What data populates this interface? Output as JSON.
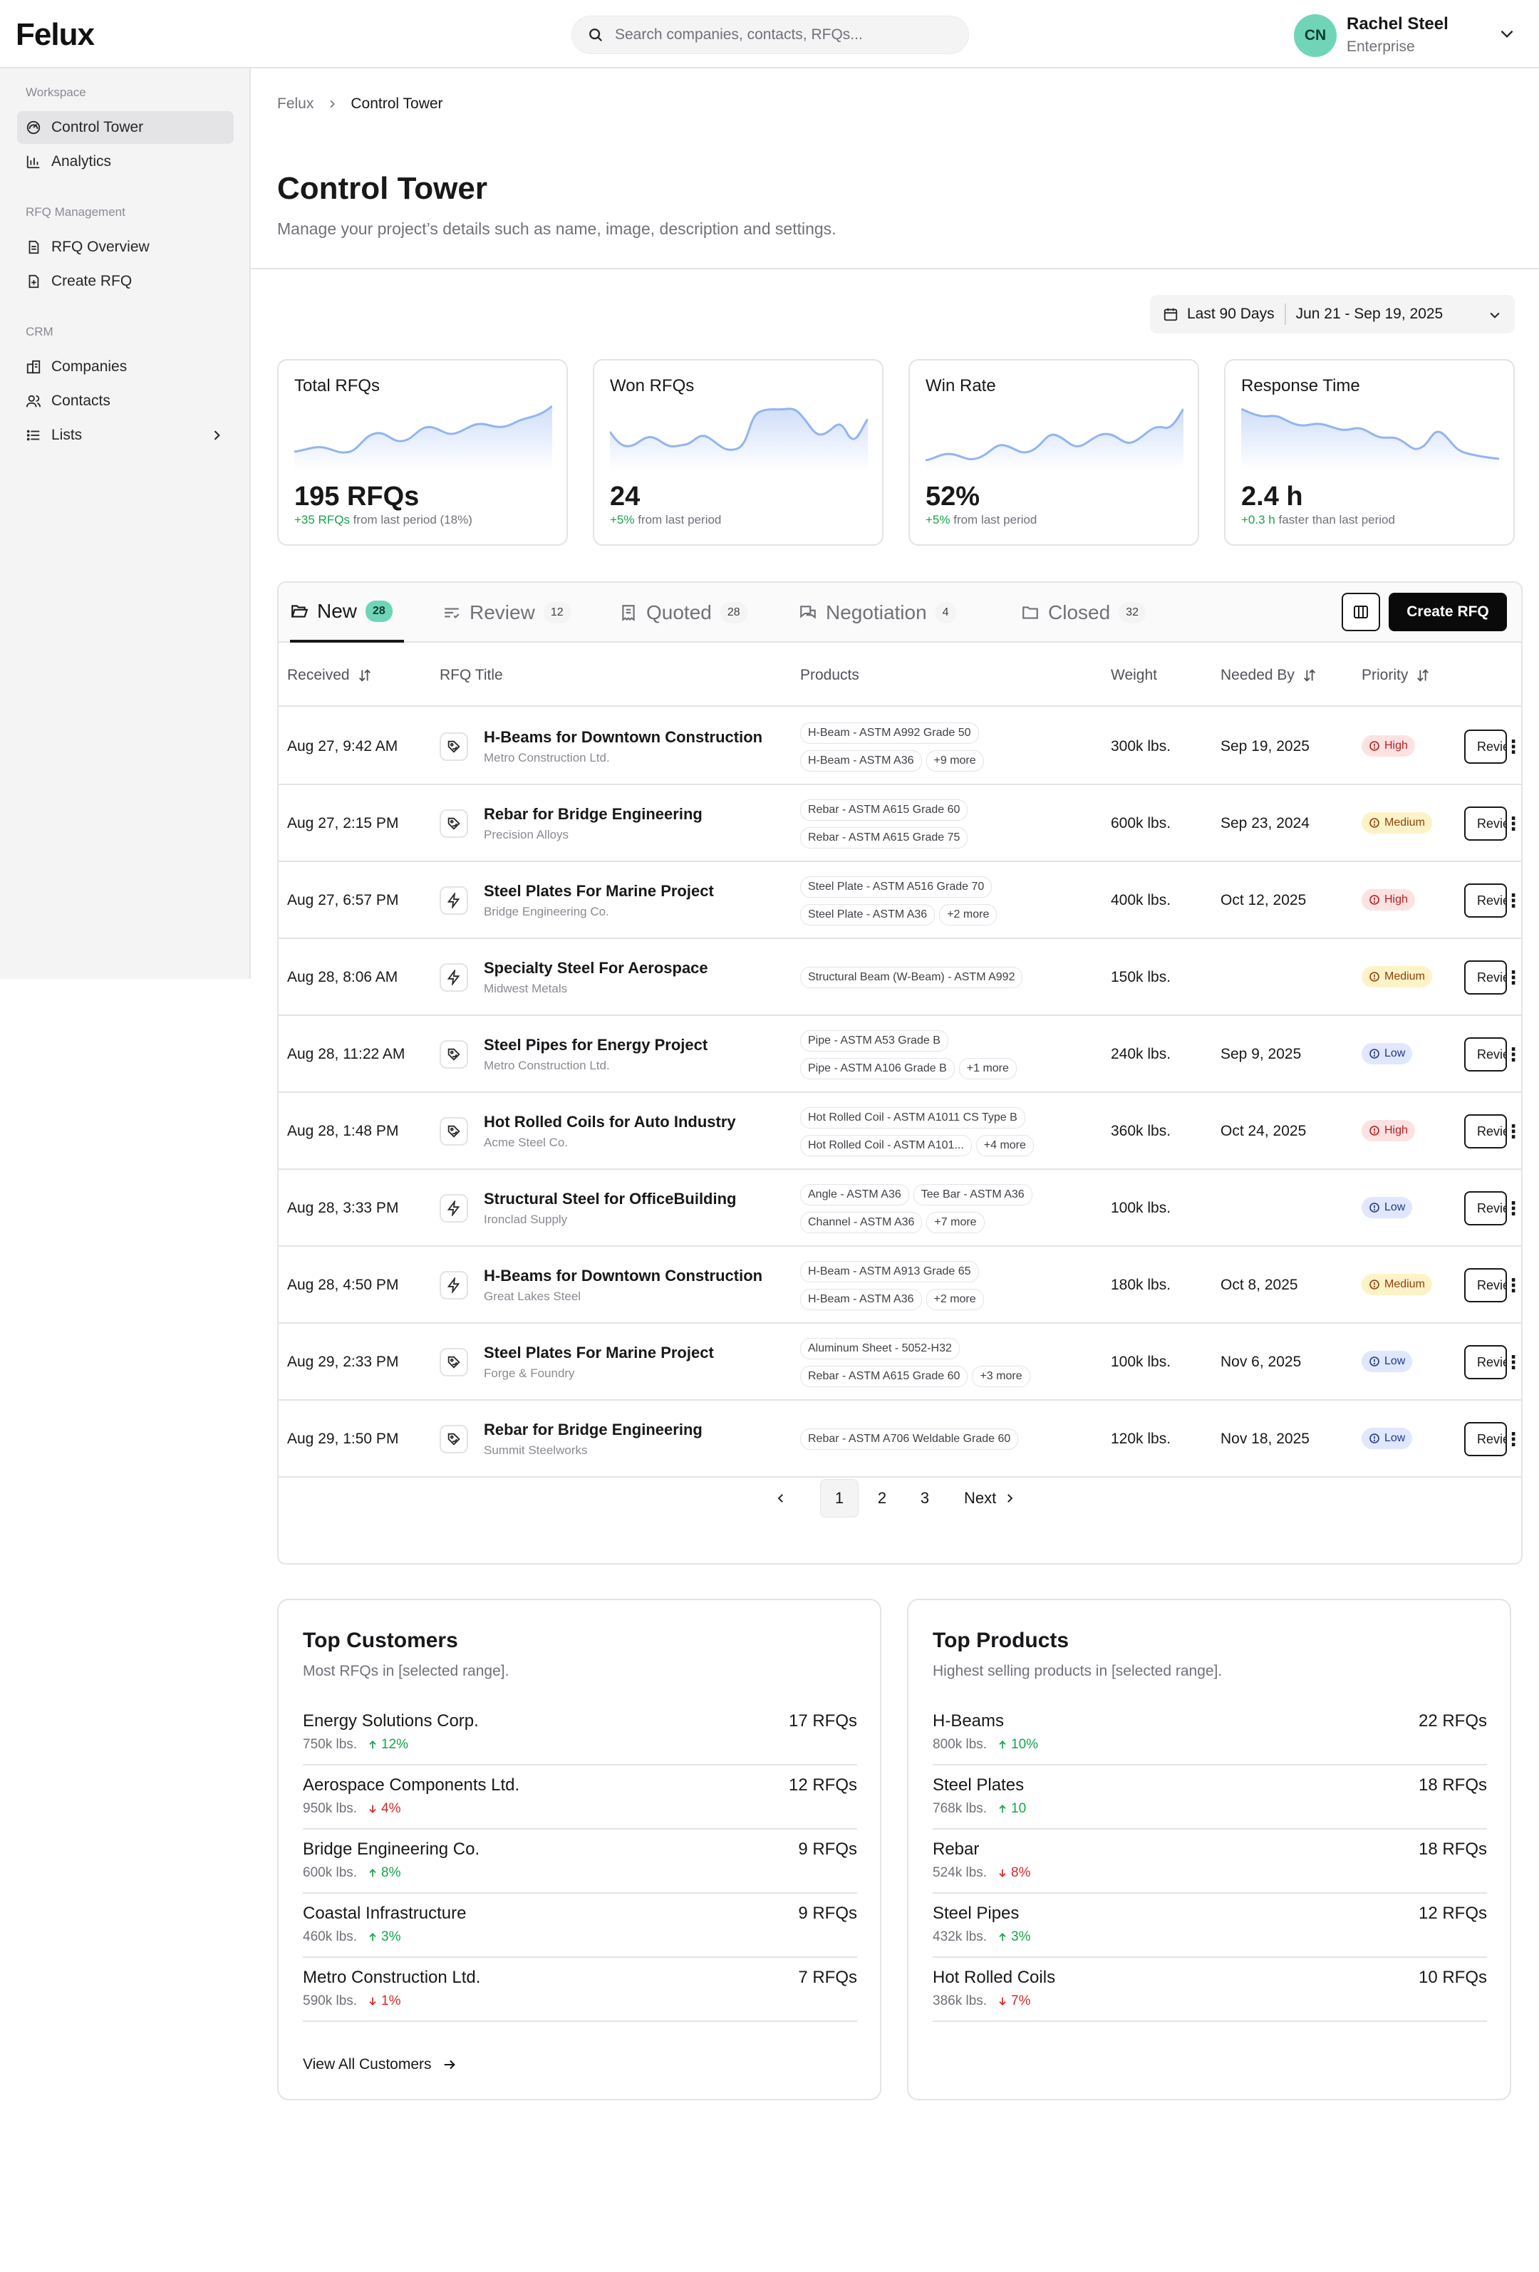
{
  "app": {
    "logo": "Felux"
  },
  "search": {
    "placeholder": "Search companies, contacts, RFQs..."
  },
  "user": {
    "initials": "CN",
    "name": "Rachel Steel",
    "role": "Enterprise"
  },
  "sidebar": {
    "sections": [
      {
        "label": "Workspace",
        "items": [
          {
            "label": "Control Tower",
            "icon": "dashboard-icon",
            "active": true
          },
          {
            "label": "Analytics",
            "icon": "bar-chart-icon"
          }
        ]
      },
      {
        "label": "RFQ Management",
        "items": [
          {
            "label": "RFQ Overview",
            "icon": "document-icon"
          },
          {
            "label": "Create RFQ",
            "icon": "document-add-icon"
          }
        ]
      },
      {
        "label": "CRM",
        "items": [
          {
            "label": "Companies",
            "icon": "building-icon"
          },
          {
            "label": "Contacts",
            "icon": "users-icon"
          },
          {
            "label": "Lists",
            "icon": "list-icon"
          }
        ]
      }
    ]
  },
  "breadcrumb": {
    "root": "Felux",
    "current": "Control Tower"
  },
  "page": {
    "title": "Control Tower",
    "subtitle": "Manage your project’s details such as name, image, description and settings."
  },
  "date_range": {
    "preset": "Last 90 Days",
    "range": "Jun 21 - Sep 19, 2025"
  },
  "kpis": [
    {
      "title": "Total RFQs",
      "value": "195 RFQs",
      "change": "+35 RFQs",
      "change_text": " from last period (18%)"
    },
    {
      "title": "Won RFQs",
      "value": "24",
      "change": "+5%",
      "change_text": " from last period"
    },
    {
      "title": "Win Rate",
      "value": "52%",
      "change": "+5%",
      "change_text": " from last period"
    },
    {
      "title": "Response Time",
      "value": "2.4 h",
      "change": "+0.3 h",
      "change_text": " faster than last period"
    }
  ],
  "tabs": [
    {
      "label": "New",
      "count": "28",
      "icon": "folder-open-icon"
    },
    {
      "label": "Review",
      "count": "12",
      "icon": "review-list-icon"
    },
    {
      "label": "Quoted",
      "count": "28",
      "icon": "receipt-icon"
    },
    {
      "label": "Negotiation",
      "count": "4",
      "icon": "chat-icon"
    },
    {
      "label": "Closed",
      "count": "32",
      "icon": "folder-icon"
    }
  ],
  "table": {
    "create_label": "Create RFQ",
    "columns": {
      "received": "Received",
      "title": "RFQ Title",
      "products": "Products",
      "weight": "Weight",
      "needed_by": "Needed By",
      "priority": "Priority"
    },
    "review_label": "Review",
    "rows": [
      {
        "received": "Aug 27, 9:42 AM",
        "icon": "tag-icon",
        "title": "H-Beams for Downtown Construction",
        "company": "Metro Construction Ltd.",
        "products": [
          [
            "H-Beam - ASTM A992 Grade 50"
          ],
          [
            "H-Beam - ASTM A36",
            "+9 more"
          ]
        ],
        "weight": "300k lbs.",
        "needed_by": "Sep 19, 2025",
        "priority": "High"
      },
      {
        "received": "Aug 27, 2:15 PM",
        "icon": "tag-icon",
        "title": "Rebar for Bridge Engineering",
        "company": "Precision Alloys",
        "products": [
          [
            "Rebar - ASTM A615 Grade 60"
          ],
          [
            "Rebar - ASTM A615 Grade 75"
          ]
        ],
        "weight": "600k lbs.",
        "needed_by": "Sep 23, 2024",
        "priority": "Medium"
      },
      {
        "received": "Aug 27, 6:57 PM",
        "icon": "lightning-icon",
        "title": "Steel Plates For Marine Project",
        "company": "Bridge Engineering Co.",
        "products": [
          [
            "Steel Plate - ASTM A516 Grade 70"
          ],
          [
            "Steel Plate - ASTM A36",
            "+2 more"
          ]
        ],
        "weight": "400k lbs.",
        "needed_by": "Oct 12, 2025",
        "priority": "High"
      },
      {
        "received": "Aug 28, 8:06 AM",
        "icon": "lightning-icon",
        "title": "Specialty Steel For Aerospace",
        "company": "Midwest Metals",
        "products": [
          [
            "Structural Beam (W-Beam) - ASTM A992"
          ]
        ],
        "weight": "150k lbs.",
        "needed_by": "",
        "priority": "Medium"
      },
      {
        "received": "Aug 28, 11:22 AM",
        "icon": "tag-icon",
        "title": "Steel Pipes for Energy Project",
        "company": "Metro Construction Ltd.",
        "products": [
          [
            "Pipe - ASTM A53 Grade B"
          ],
          [
            "Pipe - ASTM A106 Grade B",
            "+1 more"
          ]
        ],
        "weight": "240k lbs.",
        "needed_by": "Sep 9, 2025",
        "priority": "Low"
      },
      {
        "received": "Aug 28, 1:48 PM",
        "icon": "tag-icon",
        "title": "Hot Rolled Coils for Auto Industry",
        "company": "Acme Steel Co.",
        "products": [
          [
            "Hot Rolled Coil - ASTM A1011 CS Type B"
          ],
          [
            "Hot Rolled Coil - ASTM A101...",
            "+4 more"
          ]
        ],
        "weight": "360k lbs.",
        "needed_by": "Oct 24, 2025",
        "priority": "High"
      },
      {
        "received": "Aug 28, 3:33 PM",
        "icon": "lightning-icon",
        "title": "Structural Steel for OfficeBuilding",
        "company": "Ironclad Supply",
        "products": [
          [
            "Angle - ASTM A36",
            "Tee Bar - ASTM A36"
          ],
          [
            "Channel - ASTM A36",
            "+7 more"
          ]
        ],
        "weight": "100k lbs.",
        "needed_by": "",
        "priority": "Low"
      },
      {
        "received": "Aug 28, 4:50 PM",
        "icon": "lightning-icon",
        "title": "H-Beams for Downtown Construction",
        "company": "Great Lakes Steel",
        "products": [
          [
            "H-Beam - ASTM A913 Grade 65"
          ],
          [
            "H-Beam - ASTM A36",
            "+2 more"
          ]
        ],
        "weight": "180k lbs.",
        "needed_by": "Oct 8, 2025",
        "priority": "Medium"
      },
      {
        "received": "Aug 29, 2:33 PM",
        "icon": "tag-icon",
        "title": "Steel Plates For Marine Project",
        "company": "Forge & Foundry",
        "products": [
          [
            "Aluminum Sheet - 5052-H32"
          ],
          [
            "Rebar - ASTM A615 Grade 60",
            "+3 more"
          ]
        ],
        "weight": "100k lbs.",
        "needed_by": "Nov 6, 2025",
        "priority": "Low"
      },
      {
        "received": "Aug 29, 1:50 PM",
        "icon": "tag-icon",
        "title": "Rebar for Bridge Engineering",
        "company": "Summit Steelworks",
        "products": [
          [
            "Rebar - ASTM A706 Weldable Grade 60"
          ]
        ],
        "weight": "120k lbs.",
        "needed_by": "Nov 18, 2025",
        "priority": "Low"
      }
    ]
  },
  "pagination": {
    "pages": [
      "1",
      "2",
      "3"
    ],
    "current": "1",
    "next_label": "Next"
  },
  "top_customers": {
    "title": "Top Customers",
    "subtitle": "Most RFQs in [selected range].",
    "items": [
      {
        "name": "Energy Solutions Corp.",
        "count": "17 RFQs",
        "weight": "750k lbs.",
        "trend": "12%",
        "dir": "up"
      },
      {
        "name": "Aerospace Components Ltd.",
        "count": "12 RFQs",
        "weight": "950k lbs.",
        "trend": "4%",
        "dir": "down"
      },
      {
        "name": "Bridge Engineering Co.",
        "count": "9 RFQs",
        "weight": "600k lbs.",
        "trend": "8%",
        "dir": "up"
      },
      {
        "name": "Coastal Infrastructure",
        "count": "9 RFQs",
        "weight": "460k lbs.",
        "trend": "3%",
        "dir": "up"
      },
      {
        "name": "Metro Construction Ltd.",
        "count": "7 RFQs",
        "weight": "590k lbs.",
        "trend": "1%",
        "dir": "down"
      }
    ],
    "view_all": "View All Customers"
  },
  "top_products": {
    "title": "Top Products",
    "subtitle": "Highest selling products in [selected range].",
    "items": [
      {
        "name": "H-Beams",
        "count": "22 RFQs",
        "weight": "800k lbs.",
        "trend": "10%",
        "dir": "up"
      },
      {
        "name": "Steel Plates",
        "count": "18 RFQs",
        "weight": "768k lbs.",
        "trend": "10",
        "dir": "up"
      },
      {
        "name": "Rebar",
        "count": "18 RFQs",
        "weight": "524k lbs.",
        "trend": "8%",
        "dir": "down"
      },
      {
        "name": "Steel Pipes",
        "count": "12 RFQs",
        "weight": "432k lbs.",
        "trend": "3%",
        "dir": "up"
      },
      {
        "name": "Hot Rolled Coils",
        "count": "10 RFQs",
        "weight": "386k lbs.",
        "trend": "7%",
        "dir": "down"
      }
    ]
  },
  "colors": {
    "accent": "#6fd5b6",
    "up": "#16a34a",
    "down": "#dc2626",
    "spark": "#93b4f0"
  }
}
